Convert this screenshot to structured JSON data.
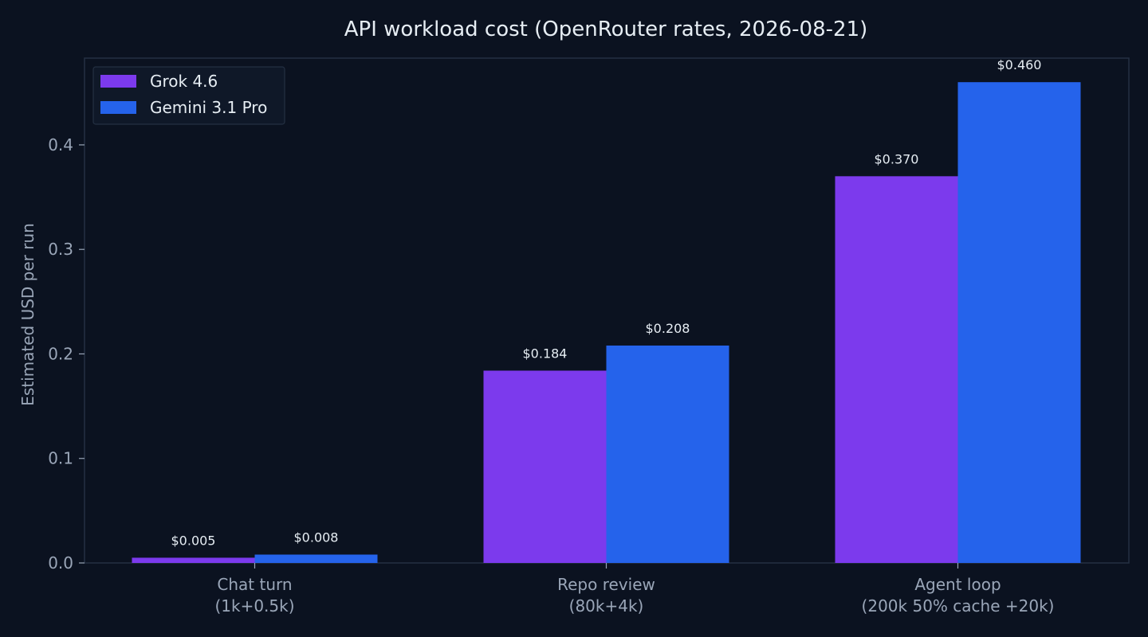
{
  "chart_data": {
    "type": "bar",
    "title": "API workload cost (OpenRouter rates, 2026-08-21)",
    "ylabel": "Estimated USD per run",
    "xlabel": "",
    "categories": [
      [
        "Chat turn",
        "(1k+0.5k)"
      ],
      [
        "Repo review",
        "(80k+4k)"
      ],
      [
        "Agent loop",
        "(200k 50% cache +20k)"
      ]
    ],
    "series": [
      {
        "name": "Grok 4.6",
        "color": "#7c3aed",
        "values": [
          0.005,
          0.184,
          0.37
        ],
        "labels": [
          "$0.005",
          "$0.184",
          "$0.370"
        ]
      },
      {
        "name": "Gemini 3.1 Pro",
        "color": "#2563eb",
        "values": [
          0.008,
          0.208,
          0.46
        ],
        "labels": [
          "$0.008",
          "$0.208",
          "$0.460"
        ]
      }
    ],
    "ylim": [
      0,
      0.483
    ],
    "yticks": [
      0.0,
      0.1,
      0.2,
      0.3,
      0.4
    ],
    "ytick_labels": [
      "0.0",
      "0.1",
      "0.2",
      "0.3",
      "0.4"
    ],
    "grid": false,
    "legend_position": "top-left",
    "colors": {
      "background": "#0b1220",
      "axes_edge": "#243042",
      "text": "#e6edf3",
      "muted_text": "#9aa6b8"
    }
  }
}
